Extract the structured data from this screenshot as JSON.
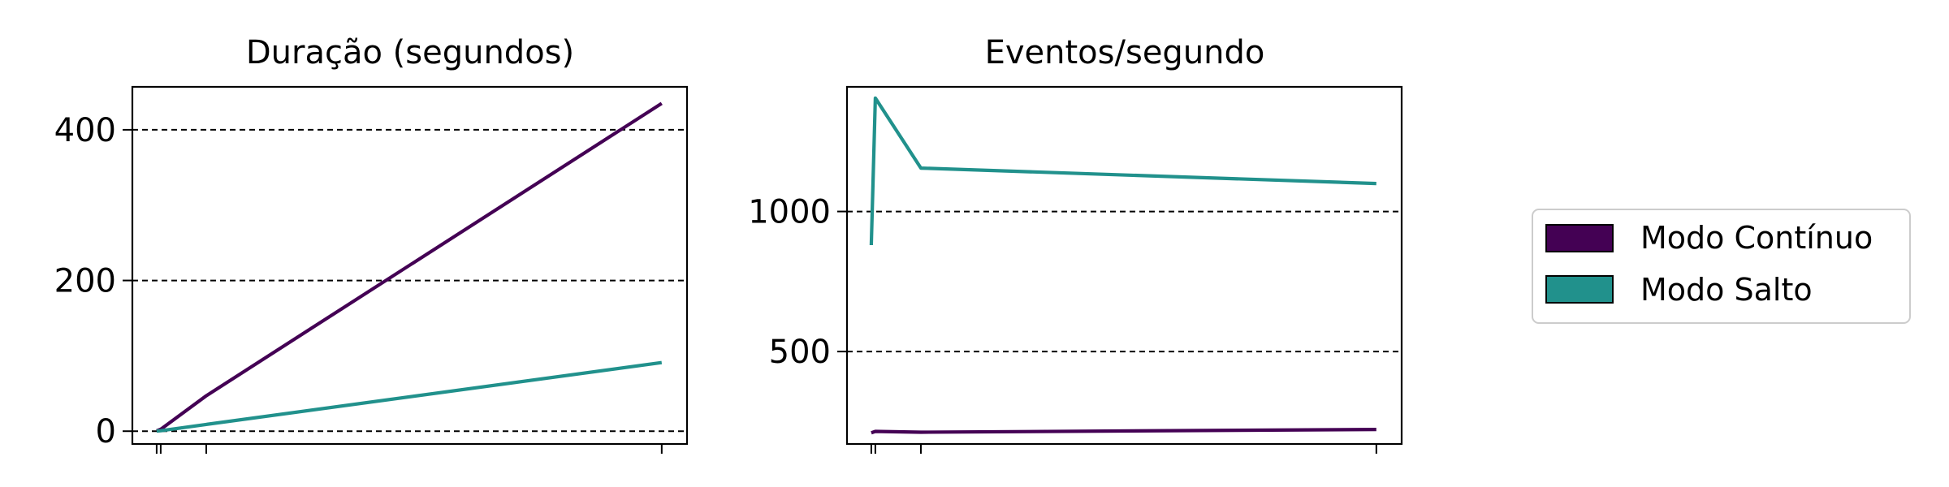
{
  "chart_data": [
    {
      "type": "line",
      "title": "Duração (segundos)",
      "xlabel": "",
      "ylabel": "",
      "x": [
        1,
        5,
        50,
        500
      ],
      "xlim": [
        -23,
        525
      ],
      "ylim": [
        -17,
        457
      ],
      "yticks": [
        0,
        200,
        400
      ],
      "xticks": [
        1,
        5,
        50,
        500
      ],
      "grid": "y-dashed",
      "series": [
        {
          "name": "Modo Contínuo",
          "color": "#440154",
          "values": [
            0.5,
            2.5,
            47,
            435
          ]
        },
        {
          "name": "Modo Salto",
          "color": "#21918c",
          "values": [
            0.2,
            0.6,
            9,
            91
          ]
        }
      ]
    },
    {
      "type": "line",
      "title": "Eventos/segundo",
      "xlabel": "",
      "ylabel": "",
      "x": [
        1,
        5,
        50,
        500
      ],
      "xlim": [
        -23,
        525
      ],
      "ylim": [
        170,
        1445
      ],
      "yticks": [
        500,
        1000
      ],
      "xticks": [
        1,
        5,
        50,
        500
      ],
      "grid": "y-dashed",
      "series": [
        {
          "name": "Modo Contínuo",
          "color": "#440154",
          "values": [
            210,
            215,
            212,
            222
          ]
        },
        {
          "name": "Modo Salto",
          "color": "#21918c",
          "values": [
            880,
            1405,
            1155,
            1100
          ]
        }
      ]
    }
  ],
  "legend": {
    "placement": "right",
    "entries": [
      {
        "label": "Modo Contínuo",
        "color": "#440154"
      },
      {
        "label": "Modo Salto",
        "color": "#21918c"
      }
    ]
  }
}
